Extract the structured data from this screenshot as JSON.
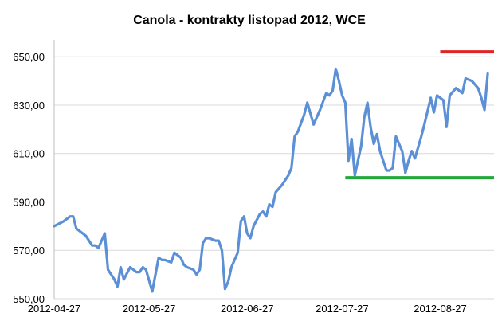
{
  "chart_data": {
    "type": "line",
    "title": "Canola - kontrakty listopad 2012, WCE",
    "xlabel": "",
    "ylabel": "",
    "ylim": [
      550,
      655
    ],
    "y_ticks": [
      "550,00",
      "570,00",
      "590,00",
      "610,00",
      "630,00",
      "650,00"
    ],
    "y_tick_values": [
      550,
      570,
      590,
      610,
      630,
      650
    ],
    "x_ticks": [
      "2012-04-27",
      "2012-05-27",
      "2012-06-27",
      "2012-07-27",
      "2012-08-27"
    ],
    "x_tick_dates": [
      "2012-04-27",
      "2012-05-27",
      "2012-06-27",
      "2012-07-27",
      "2012-08-27"
    ],
    "xlim": [
      "2012-04-27",
      "2012-09-13"
    ],
    "grid": true,
    "series": [
      {
        "color": "#5b8fd6",
        "points": [
          [
            "2012-04-27",
            580
          ],
          [
            "2012-04-30",
            582
          ],
          [
            "2012-05-02",
            584
          ],
          [
            "2012-05-03",
            584
          ],
          [
            "2012-05-04",
            579
          ],
          [
            "2012-05-07",
            576
          ],
          [
            "2012-05-08",
            574
          ],
          [
            "2012-05-09",
            572
          ],
          [
            "2012-05-10",
            572
          ],
          [
            "2012-05-11",
            571
          ],
          [
            "2012-05-13",
            577
          ],
          [
            "2012-05-14",
            562
          ],
          [
            "2012-05-15",
            560
          ],
          [
            "2012-05-16",
            558
          ],
          [
            "2012-05-17",
            555
          ],
          [
            "2012-05-18",
            563
          ],
          [
            "2012-05-19",
            558
          ],
          [
            "2012-05-21",
            563
          ],
          [
            "2012-05-22",
            562
          ],
          [
            "2012-05-23",
            561
          ],
          [
            "2012-05-24",
            561
          ],
          [
            "2012-05-25",
            563
          ],
          [
            "2012-05-26",
            562
          ],
          [
            "2012-05-28",
            553
          ],
          [
            "2012-05-30",
            567
          ],
          [
            "2012-05-31",
            566
          ],
          [
            "2012-06-01",
            566
          ],
          [
            "2012-06-03",
            565
          ],
          [
            "2012-06-04",
            569
          ],
          [
            "2012-06-05",
            568
          ],
          [
            "2012-06-06",
            567
          ],
          [
            "2012-06-07",
            564
          ],
          [
            "2012-06-08",
            563
          ],
          [
            "2012-06-10",
            562
          ],
          [
            "2012-06-11",
            560
          ],
          [
            "2012-06-12",
            562
          ],
          [
            "2012-06-13",
            573
          ],
          [
            "2012-06-14",
            575
          ],
          [
            "2012-06-15",
            575
          ],
          [
            "2012-06-17",
            574
          ],
          [
            "2012-06-18",
            574
          ],
          [
            "2012-06-19",
            570
          ],
          [
            "2012-06-20",
            554
          ],
          [
            "2012-06-21",
            557
          ],
          [
            "2012-06-22",
            563
          ],
          [
            "2012-06-24",
            569
          ],
          [
            "2012-06-25",
            582
          ],
          [
            "2012-06-26",
            584
          ],
          [
            "2012-06-27",
            577
          ],
          [
            "2012-06-28",
            575
          ],
          [
            "2012-06-29",
            580
          ],
          [
            "2012-07-01",
            585
          ],
          [
            "2012-07-02",
            586
          ],
          [
            "2012-07-03",
            584
          ],
          [
            "2012-07-04",
            589
          ],
          [
            "2012-07-05",
            588
          ],
          [
            "2012-07-06",
            594
          ],
          [
            "2012-07-08",
            597
          ],
          [
            "2012-07-10",
            601
          ],
          [
            "2012-07-11",
            604
          ],
          [
            "2012-07-12",
            617
          ],
          [
            "2012-07-13",
            619
          ],
          [
            "2012-07-15",
            626
          ],
          [
            "2012-07-16",
            631
          ],
          [
            "2012-07-18",
            622
          ],
          [
            "2012-07-19",
            625
          ],
          [
            "2012-07-20",
            628
          ],
          [
            "2012-07-22",
            635
          ],
          [
            "2012-07-23",
            634
          ],
          [
            "2012-07-24",
            636
          ],
          [
            "2012-07-25",
            645
          ],
          [
            "2012-07-26",
            640
          ],
          [
            "2012-07-27",
            634
          ],
          [
            "2012-07-28",
            631
          ],
          [
            "2012-07-29",
            607
          ],
          [
            "2012-07-30",
            616
          ],
          [
            "2012-07-31",
            601
          ],
          [
            "2012-08-01",
            607
          ],
          [
            "2012-08-02",
            613
          ],
          [
            "2012-08-03",
            625
          ],
          [
            "2012-08-04",
            631
          ],
          [
            "2012-08-05",
            621
          ],
          [
            "2012-08-06",
            614
          ],
          [
            "2012-08-07",
            618
          ],
          [
            "2012-08-08",
            611
          ],
          [
            "2012-08-10",
            603
          ],
          [
            "2012-08-11",
            603
          ],
          [
            "2012-08-12",
            604
          ],
          [
            "2012-08-13",
            617
          ],
          [
            "2012-08-15",
            611
          ],
          [
            "2012-08-16",
            602
          ],
          [
            "2012-08-17",
            607
          ],
          [
            "2012-08-18",
            611
          ],
          [
            "2012-08-19",
            608
          ],
          [
            "2012-08-21",
            617
          ],
          [
            "2012-08-22",
            622
          ],
          [
            "2012-08-24",
            633
          ],
          [
            "2012-08-25",
            627
          ],
          [
            "2012-08-26",
            634
          ],
          [
            "2012-08-27",
            633
          ],
          [
            "2012-08-28",
            632
          ],
          [
            "2012-08-29",
            621
          ],
          [
            "2012-08-30",
            634
          ],
          [
            "2012-09-01",
            637
          ],
          [
            "2012-09-03",
            635
          ],
          [
            "2012-09-04",
            641
          ],
          [
            "2012-09-06",
            640
          ],
          [
            "2012-09-08",
            637
          ],
          [
            "2012-09-09",
            633
          ],
          [
            "2012-09-10",
            628
          ],
          [
            "2012-09-11",
            643
          ]
        ]
      }
    ],
    "reference_lines": [
      {
        "color": "#e02424",
        "value": 652,
        "x_start": "2012-08-27",
        "x_end": "2012-09-13"
      },
      {
        "color": "#22a83a",
        "value": 600,
        "x_start": "2012-07-28",
        "x_end": "2012-09-13"
      }
    ]
  }
}
